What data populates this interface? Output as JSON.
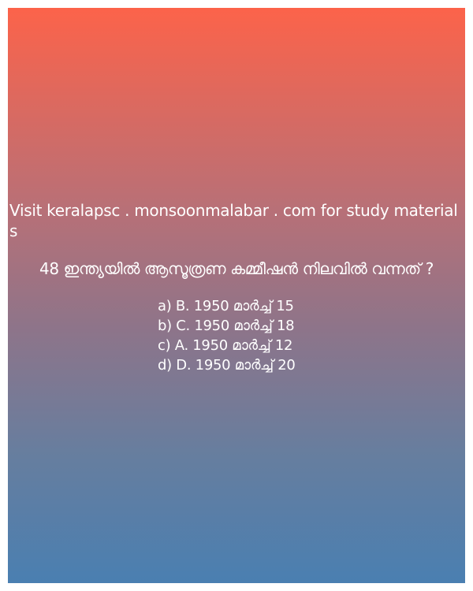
{
  "banner": {
    "visit_text": "Visit keralapsc . monsoonmalabar . com for study materials"
  },
  "question": {
    "text": "4​8​ ഇന്ത്യയിൽ ആസൂത്രണ കമ്മീഷൻ നിലവിൽ വന്നത് ​?"
  },
  "options": [
    "a) B. 1950 മാർച്ച് 15",
    "b) C. 1950 മാർച്ച് 18",
    "c) A. 1950 മാർച്ച് 12",
    "d) D. 1950 മാർച്ച് 20"
  ],
  "colors": {
    "gradient_top": "#fc634a",
    "gradient_bottom": "#4a7fb1",
    "text": "#ffffff"
  }
}
